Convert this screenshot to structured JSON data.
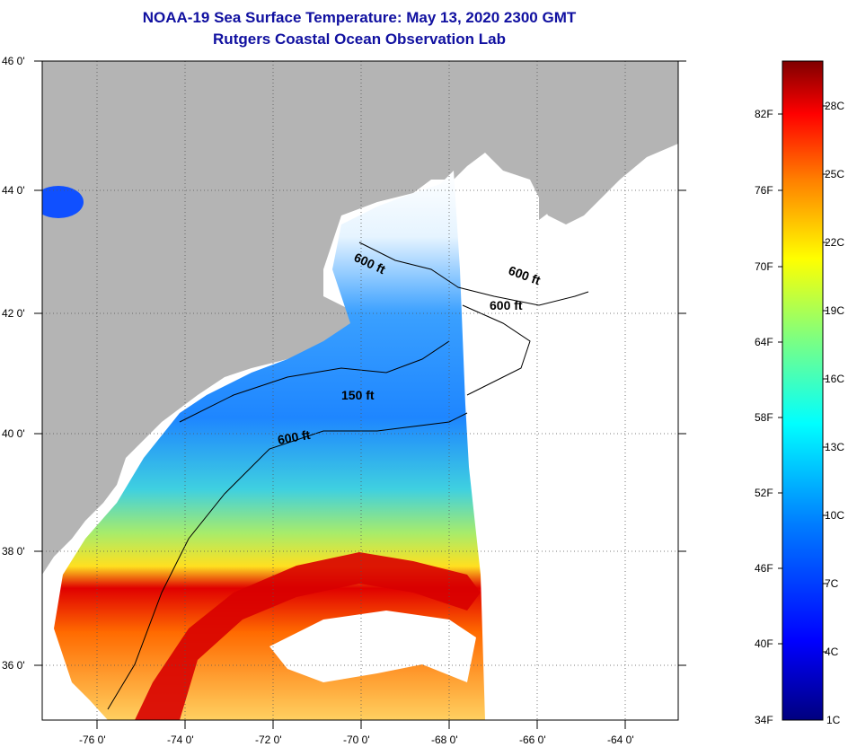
{
  "title": {
    "line1": "NOAA-19 Sea Surface Temperature:  May 13, 2020 2300 GMT",
    "line2": "Rutgers Coastal Ocean Observation Lab"
  },
  "axes": {
    "lat_labels": [
      "46 0'",
      "44 0'",
      "42 0'",
      "40 0'",
      "38 0'",
      "36 0'"
    ],
    "lon_labels": [
      "-76 0'",
      "-74 0'",
      "-72 0'",
      "-70 0'",
      "-68 0'",
      "-66 0'",
      "-64 0'"
    ]
  },
  "contours": {
    "labels": [
      "600 ft",
      "600 ft",
      "600 ft",
      "150 ft",
      "600 ft"
    ]
  },
  "colorbar": {
    "fahrenheit": [
      "82F",
      "76F",
      "70F",
      "64F",
      "58F",
      "52F",
      "46F",
      "40F",
      "34F"
    ],
    "celsius": [
      "28C",
      "25C",
      "22C",
      "19C",
      "16C",
      "13C",
      "10C",
      "7C",
      "4C",
      "1C"
    ],
    "colors": [
      "#00007f",
      "#0000ff",
      "#007fff",
      "#00ffff",
      "#7fff7f",
      "#ffff00",
      "#ff7f00",
      "#ff0000",
      "#7f0000"
    ]
  },
  "colors": {
    "land": "#b4b4b4",
    "no_data": "#ffffff",
    "title": "#1010a0"
  }
}
